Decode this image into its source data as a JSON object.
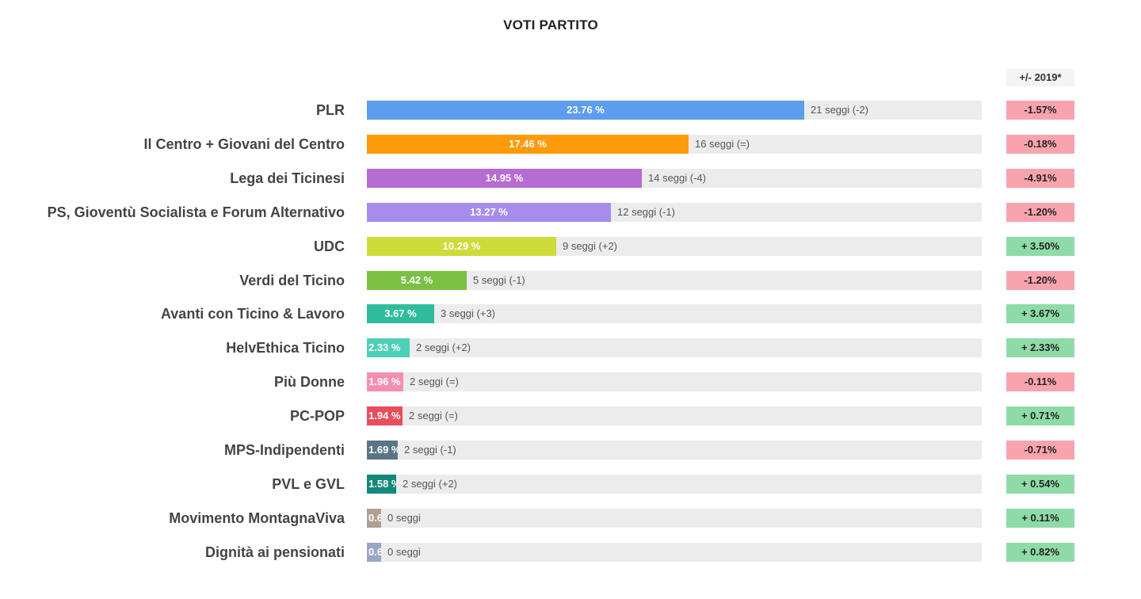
{
  "colors": {
    "negative_bg": "#f9a3ae",
    "positive_bg": "#8fdba8",
    "track": "#ececec"
  },
  "chart_data": {
    "type": "bar",
    "title": "VOTI PARTITO",
    "change_header": "+/- 2019*",
    "xlim": [
      0,
      24
    ],
    "categories": [
      "PLR",
      "Il Centro + Giovani del Centro",
      "Lega dei Ticinesi",
      "PS, Gioventù Socialista e Forum Alternativo",
      "UDC",
      "Verdi del Ticino",
      "Avanti con Ticino & Lavoro",
      "HelvEthica Ticino",
      "Più Donne",
      "PC-POP",
      "MPS-Indipendenti",
      "PVL e GVL",
      "Movimento MontagnaViva",
      "Dignità ai pensionati"
    ],
    "values": [
      23.76,
      17.46,
      14.95,
      13.27,
      10.29,
      5.42,
      3.67,
      2.33,
      1.96,
      1.94,
      1.69,
      1.58,
      0.6,
      0.6
    ],
    "value_labels": [
      "23.76 %",
      "17.46 %",
      "14.95 %",
      "13.27 %",
      "10.29 %",
      "5.42 %",
      "3.67 %",
      "2.33 %",
      "1.96 %",
      "1.94 %",
      "1.69 %",
      "1.58 %",
      "0.6",
      "0.6"
    ],
    "seat_labels": [
      "21 seggi (-2)",
      "16 seggi (=)",
      "14 seggi (-4)",
      "12 seggi (-1)",
      "9 seggi (+2)",
      "5 seggi (-1)",
      "3 seggi (+3)",
      "2 seggi (+2)",
      "2 seggi (=)",
      "2 seggi (=)",
      "2 seggi (-1)",
      "2 seggi (+2)",
      "0 seggi",
      "0 seggi"
    ],
    "changes": [
      "-1.57%",
      "-0.18%",
      "-4.91%",
      "-1.20%",
      "+ 3.50%",
      "-1.20%",
      "+ 3.67%",
      "+ 2.33%",
      "-0.11%",
      "+ 0.71%",
      "-0.71%",
      "+ 0.54%",
      "+ 0.11%",
      "+ 0.82%"
    ],
    "change_signs": [
      "neg",
      "neg",
      "neg",
      "neg",
      "pos",
      "neg",
      "pos",
      "pos",
      "neg",
      "pos",
      "neg",
      "pos",
      "pos",
      "pos"
    ],
    "bar_colors": [
      "#5c9ded",
      "#ff9a0a",
      "#b66cd2",
      "#a78cec",
      "#cddc39",
      "#7bc043",
      "#2ebd9b",
      "#4dd0b8",
      "#f48fb1",
      "#ea4d5c",
      "#5a7686",
      "#13897a",
      "#b0a195",
      "#9aa6c6"
    ]
  }
}
